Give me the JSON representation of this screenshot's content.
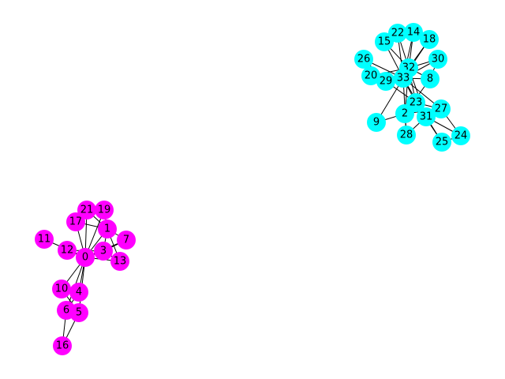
{
  "graph": {
    "colors": {
      "group_a": "#ff00ff",
      "group_b": "#00ffff",
      "edge": "#000000",
      "background": "#ffffff"
    },
    "nodes": [
      {
        "id": "0",
        "label": "0",
        "group": "group_a"
      },
      {
        "id": "1",
        "label": "1",
        "group": "group_a"
      },
      {
        "id": "3",
        "label": "3",
        "group": "group_a"
      },
      {
        "id": "4",
        "label": "4",
        "group": "group_a"
      },
      {
        "id": "5",
        "label": "5",
        "group": "group_a"
      },
      {
        "id": "6",
        "label": "6",
        "group": "group_a"
      },
      {
        "id": "7",
        "label": "7",
        "group": "group_a"
      },
      {
        "id": "10",
        "label": "10",
        "group": "group_a"
      },
      {
        "id": "11",
        "label": "11",
        "group": "group_a"
      },
      {
        "id": "12",
        "label": "12",
        "group": "group_a"
      },
      {
        "id": "13",
        "label": "13",
        "group": "group_a"
      },
      {
        "id": "16",
        "label": "16",
        "group": "group_a"
      },
      {
        "id": "17",
        "label": "17",
        "group": "group_a"
      },
      {
        "id": "19",
        "label": "19",
        "group": "group_a"
      },
      {
        "id": "21",
        "label": "21",
        "group": "group_a"
      },
      {
        "id": "2",
        "label": "2",
        "group": "group_b"
      },
      {
        "id": "8",
        "label": "8",
        "group": "group_b"
      },
      {
        "id": "9",
        "label": "9",
        "group": "group_b"
      },
      {
        "id": "14",
        "label": "14",
        "group": "group_b"
      },
      {
        "id": "15",
        "label": "15",
        "group": "group_b"
      },
      {
        "id": "18",
        "label": "18",
        "group": "group_b"
      },
      {
        "id": "20",
        "label": "20",
        "group": "group_b"
      },
      {
        "id": "22",
        "label": "22",
        "group": "group_b"
      },
      {
        "id": "23",
        "label": "23",
        "group": "group_b"
      },
      {
        "id": "24",
        "label": "24",
        "group": "group_b"
      },
      {
        "id": "25",
        "label": "25",
        "group": "group_b"
      },
      {
        "id": "26",
        "label": "26",
        "group": "group_b"
      },
      {
        "id": "27",
        "label": "27",
        "group": "group_b"
      },
      {
        "id": "28",
        "label": "28",
        "group": "group_b"
      },
      {
        "id": "29",
        "label": "29",
        "group": "group_b"
      },
      {
        "id": "30",
        "label": "30",
        "group": "group_b"
      },
      {
        "id": "31",
        "label": "31",
        "group": "group_b"
      },
      {
        "id": "32",
        "label": "32",
        "group": "group_b"
      },
      {
        "id": "33",
        "label": "33",
        "group": "group_b"
      }
    ],
    "edges": [
      [
        "0",
        "1"
      ],
      [
        "0",
        "3"
      ],
      [
        "0",
        "4"
      ],
      [
        "0",
        "5"
      ],
      [
        "0",
        "6"
      ],
      [
        "0",
        "7"
      ],
      [
        "0",
        "10"
      ],
      [
        "0",
        "11"
      ],
      [
        "0",
        "12"
      ],
      [
        "0",
        "13"
      ],
      [
        "0",
        "17"
      ],
      [
        "0",
        "19"
      ],
      [
        "0",
        "21"
      ],
      [
        "1",
        "3"
      ],
      [
        "1",
        "7"
      ],
      [
        "1",
        "13"
      ],
      [
        "1",
        "17"
      ],
      [
        "1",
        "19"
      ],
      [
        "1",
        "21"
      ],
      [
        "3",
        "7"
      ],
      [
        "3",
        "12"
      ],
      [
        "3",
        "13"
      ],
      [
        "4",
        "6"
      ],
      [
        "4",
        "10"
      ],
      [
        "5",
        "6"
      ],
      [
        "5",
        "10"
      ],
      [
        "5",
        "16"
      ],
      [
        "6",
        "16"
      ],
      [
        "2",
        "8"
      ],
      [
        "2",
        "9"
      ],
      [
        "2",
        "27"
      ],
      [
        "2",
        "28"
      ],
      [
        "2",
        "32"
      ],
      [
        "8",
        "30"
      ],
      [
        "8",
        "32"
      ],
      [
        "8",
        "33"
      ],
      [
        "9",
        "33"
      ],
      [
        "14",
        "32"
      ],
      [
        "14",
        "33"
      ],
      [
        "15",
        "32"
      ],
      [
        "15",
        "33"
      ],
      [
        "18",
        "32"
      ],
      [
        "18",
        "33"
      ],
      [
        "20",
        "32"
      ],
      [
        "20",
        "33"
      ],
      [
        "22",
        "32"
      ],
      [
        "22",
        "33"
      ],
      [
        "23",
        "25"
      ],
      [
        "23",
        "27"
      ],
      [
        "23",
        "29"
      ],
      [
        "23",
        "32"
      ],
      [
        "23",
        "33"
      ],
      [
        "24",
        "25"
      ],
      [
        "24",
        "27"
      ],
      [
        "24",
        "31"
      ],
      [
        "25",
        "31"
      ],
      [
        "26",
        "29"
      ],
      [
        "26",
        "33"
      ],
      [
        "27",
        "33"
      ],
      [
        "28",
        "31"
      ],
      [
        "28",
        "33"
      ],
      [
        "29",
        "32"
      ],
      [
        "29",
        "33"
      ],
      [
        "30",
        "32"
      ],
      [
        "30",
        "33"
      ],
      [
        "31",
        "32"
      ],
      [
        "31",
        "33"
      ],
      [
        "32",
        "33"
      ]
    ]
  }
}
